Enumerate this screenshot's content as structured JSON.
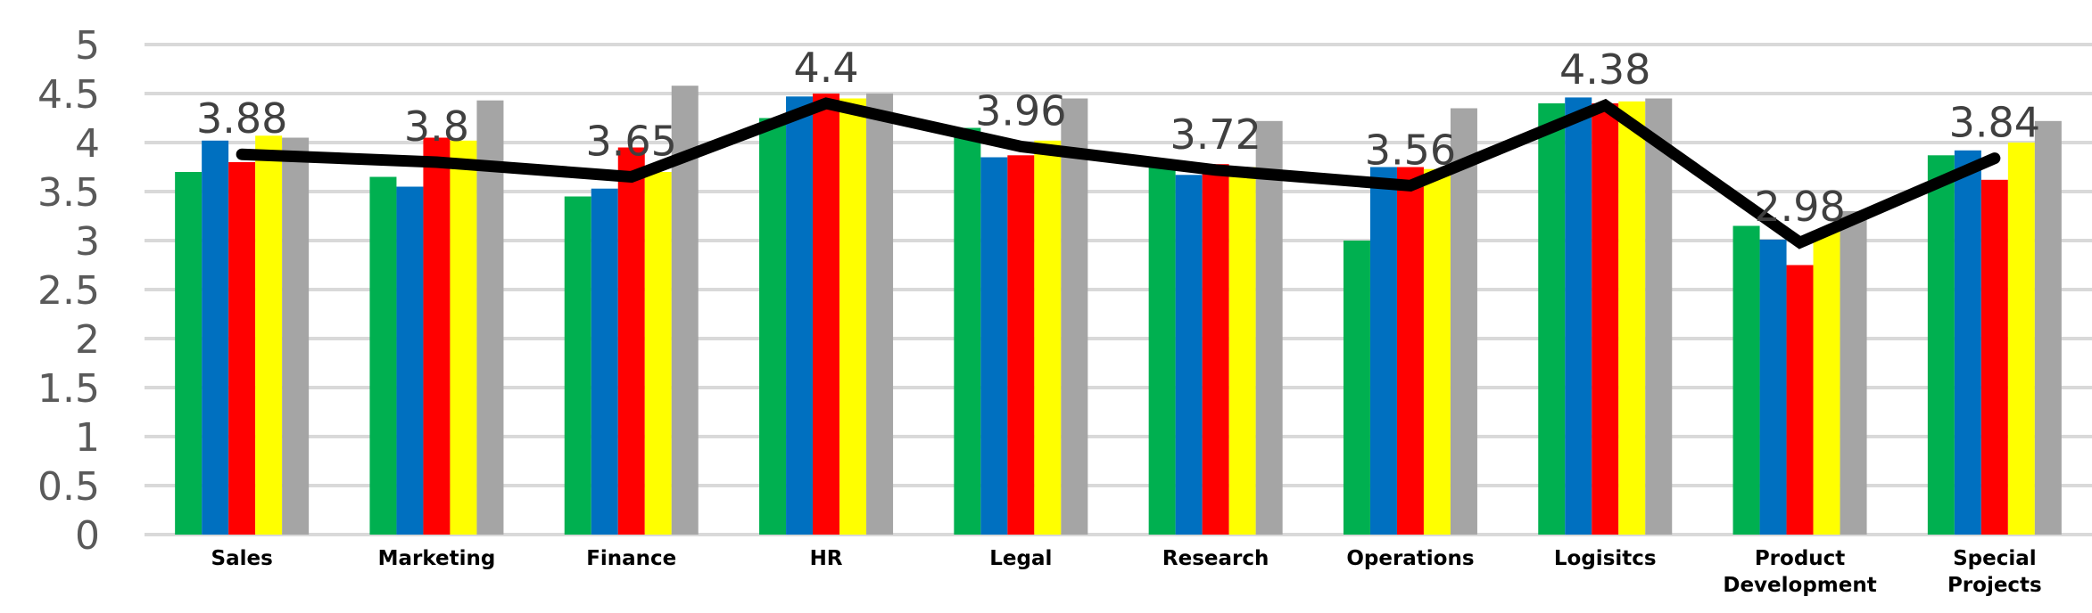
{
  "chart_data": {
    "type": "bar",
    "categories": [
      "Sales",
      "Marketing",
      "Finance",
      "HR",
      "Legal",
      "Research",
      "Operations",
      "Logisitcs",
      "Product Development",
      "Special Projects"
    ],
    "category_label_lines": [
      [
        "Sales"
      ],
      [
        "Marketing"
      ],
      [
        "Finance"
      ],
      [
        "HR"
      ],
      [
        "Legal"
      ],
      [
        "Research"
      ],
      [
        "Operations"
      ],
      [
        "Logisitcs"
      ],
      [
        "Product",
        "Development"
      ],
      [
        "Special",
        "Projects"
      ]
    ],
    "series": [
      {
        "type": "bar",
        "color": "#00B050",
        "values": [
          3.7,
          3.65,
          3.45,
          4.25,
          4.15,
          3.75,
          3.0,
          4.4,
          3.15,
          3.87
        ]
      },
      {
        "type": "bar",
        "color": "#0070C0",
        "values": [
          4.02,
          3.55,
          3.53,
          4.47,
          3.85,
          3.67,
          3.75,
          4.46,
          3.01,
          3.92
        ]
      },
      {
        "type": "bar",
        "color": "#FF0000",
        "values": [
          3.8,
          4.05,
          3.95,
          4.5,
          3.87,
          3.78,
          3.75,
          4.4,
          2.75,
          3.62
        ]
      },
      {
        "type": "bar",
        "color": "#FFFF00",
        "values": [
          4.07,
          4.02,
          3.7,
          4.45,
          4.02,
          3.75,
          3.73,
          4.42,
          3.1,
          4.0
        ]
      },
      {
        "type": "bar",
        "color": "#A5A5A5",
        "values": [
          4.05,
          4.43,
          4.58,
          4.5,
          4.45,
          4.22,
          4.35,
          4.45,
          3.3,
          4.22
        ]
      },
      {
        "type": "line",
        "color": "#000000",
        "values": [
          3.88,
          3.8,
          3.65,
          4.4,
          3.96,
          3.72,
          3.56,
          4.38,
          2.98,
          3.84
        ],
        "data_labels": [
          "3.88",
          "3.8",
          "3.65",
          "4.4",
          "3.96",
          "3.72",
          "3.56",
          "4.38",
          "2.98",
          "3.84"
        ]
      }
    ],
    "ylim": [
      0,
      5
    ],
    "yticks": [
      "0",
      "0.5",
      "1",
      "1.5",
      "2",
      "2.5",
      "3",
      "3.5",
      "4",
      "4.5",
      "5"
    ],
    "grid": true,
    "legend": "none",
    "title": "",
    "xlabel": "",
    "ylabel": ""
  }
}
